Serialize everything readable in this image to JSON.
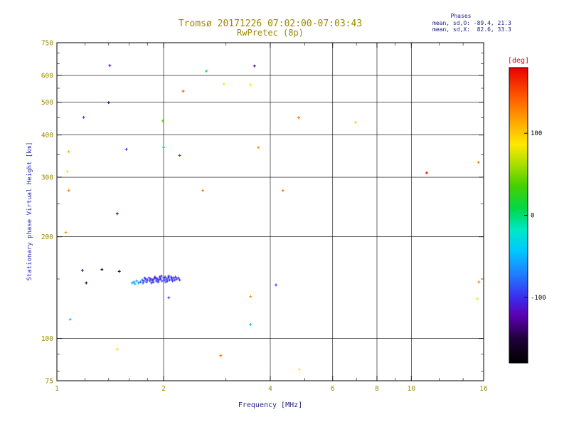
{
  "title": "Tromsø 20171226 07:02:00-07:03:43",
  "subtitle": "RwPretec (8p)",
  "stats": {
    "header": "Phases",
    "line_o": "mean, sd,O: -89.4, 21.3",
    "line_x": "mean, sd,X:  82.6, 33.3"
  },
  "colors": {
    "title": "#9c8a00",
    "ticks": "#9c8a00",
    "xlabel": "#26268c",
    "ylabel": "#2e2eb8",
    "stats": "#1a1a80",
    "colorbar_label": "#e80000",
    "axis": "#000000",
    "background": "#ffffff"
  },
  "chart_data": {
    "type": "scatter",
    "title": "Tromsø 20171226 07:02:00-07:03:43",
    "subtitle": "RwPretec (8p)",
    "xlabel": "Frequency [MHz]",
    "ylabel": "Stationary phase Virtual Height [km]",
    "xscale": "log",
    "yscale": "log",
    "xlim": [
      1,
      16
    ],
    "ylim": [
      75,
      750
    ],
    "xticks": [
      1,
      2,
      4,
      6,
      8,
      10,
      16
    ],
    "yticks": [
      75,
      100,
      200,
      300,
      400,
      500,
      600,
      750
    ],
    "xgrid": [
      2,
      4,
      6,
      8,
      10
    ],
    "ygrid": [
      100,
      200,
      300,
      400,
      500,
      600
    ],
    "x_minor_ticks": [
      1.2,
      1.4,
      1.6,
      1.8,
      3,
      5,
      7,
      9,
      12,
      14
    ],
    "y_minor_ticks": [
      80,
      90,
      150,
      250,
      350,
      450,
      550,
      650,
      700
    ],
    "grid": true,
    "legend": false,
    "colorbar": {
      "label": "[deg]",
      "ticks": [
        100,
        0,
        -100
      ],
      "range": [
        -180,
        180
      ],
      "gradient": [
        {
          "t": 0.0,
          "c": "#000000"
        },
        {
          "t": 0.08,
          "c": "#1e0038"
        },
        {
          "t": 0.16,
          "c": "#5a00b0"
        },
        {
          "t": 0.22,
          "c": "#3b2bee"
        },
        {
          "t": 0.3,
          "c": "#1f7dff"
        },
        {
          "t": 0.38,
          "c": "#00c8ff"
        },
        {
          "t": 0.45,
          "c": "#00e8c8"
        },
        {
          "t": 0.52,
          "c": "#00d84b"
        },
        {
          "t": 0.6,
          "c": "#46cf00"
        },
        {
          "t": 0.68,
          "c": "#b4e000"
        },
        {
          "t": 0.74,
          "c": "#ffe800"
        },
        {
          "t": 0.82,
          "c": "#ffa400"
        },
        {
          "t": 0.9,
          "c": "#ff5a00"
        },
        {
          "t": 1.0,
          "c": "#e80000"
        }
      ]
    },
    "points_format": [
      "frequency_MHz",
      "virtual_height_km",
      "phase_deg"
    ],
    "points": [
      [
        1.08,
        357,
        110
      ],
      [
        1.07,
        312,
        90
      ],
      [
        1.08,
        274,
        128
      ],
      [
        1.06,
        206,
        120
      ],
      [
        1.09,
        114,
        -48
      ],
      [
        1.19,
        451,
        -95
      ],
      [
        1.18,
        159,
        -140
      ],
      [
        1.21,
        146,
        -152
      ],
      [
        1.34,
        160,
        -166
      ],
      [
        1.4,
        499,
        -142
      ],
      [
        1.41,
        642,
        -122
      ],
      [
        1.48,
        234,
        -138
      ],
      [
        1.5,
        158,
        -158
      ],
      [
        1.48,
        93,
        95
      ],
      [
        1.57,
        363,
        -105
      ],
      [
        2.0,
        368,
        8
      ],
      [
        1.99,
        440,
        40
      ],
      [
        2.22,
        348,
        -90
      ],
      [
        2.27,
        539,
        148
      ],
      [
        2.07,
        132,
        -95
      ],
      [
        2.64,
        618,
        12
      ],
      [
        2.96,
        566,
        85
      ],
      [
        2.58,
        274,
        130
      ],
      [
        2.9,
        89,
        135
      ],
      [
        3.52,
        563,
        90
      ],
      [
        3.61,
        640,
        -130
      ],
      [
        3.7,
        367,
        122
      ],
      [
        3.52,
        133,
        126
      ],
      [
        3.52,
        110,
        -50
      ],
      [
        4.15,
        144,
        -95
      ],
      [
        4.34,
        274,
        130
      ],
      [
        4.81,
        450,
        140
      ],
      [
        4.83,
        81,
        86
      ],
      [
        6.96,
        436,
        95
      ],
      [
        11.05,
        309,
        176
      ],
      [
        15.46,
        332,
        130
      ],
      [
        15.52,
        147,
        134
      ],
      [
        15.35,
        131,
        92
      ],
      [
        1.63,
        146,
        -55
      ],
      [
        1.65,
        147,
        -60
      ],
      [
        1.66,
        145,
        -50
      ],
      [
        1.68,
        148,
        -58
      ],
      [
        1.7,
        146,
        -62
      ],
      [
        1.72,
        147,
        -70
      ],
      [
        1.74,
        149,
        -85
      ],
      [
        1.75,
        146,
        -90
      ],
      [
        1.76,
        148,
        -95
      ],
      [
        1.78,
        150,
        -100
      ],
      [
        1.79,
        147,
        -92
      ],
      [
        1.8,
        149,
        -98
      ],
      [
        1.82,
        151,
        -105
      ],
      [
        1.83,
        148,
        -95
      ],
      [
        1.84,
        150,
        -100
      ],
      [
        1.86,
        149,
        -110
      ],
      [
        1.87,
        147,
        -96
      ],
      [
        1.88,
        150,
        -102
      ],
      [
        1.9,
        151,
        -98
      ],
      [
        1.91,
        148,
        -94
      ],
      [
        1.92,
        150,
        -105
      ],
      [
        1.94,
        149,
        -100
      ],
      [
        1.95,
        152,
        -96
      ],
      [
        1.96,
        150,
        -108
      ],
      [
        1.98,
        148,
        -92
      ],
      [
        2.0,
        151,
        -100
      ],
      [
        2.01,
        149,
        -95
      ],
      [
        2.02,
        152,
        -104
      ],
      [
        2.04,
        150,
        -98
      ],
      [
        2.05,
        148,
        -93
      ],
      [
        2.06,
        151,
        -101
      ],
      [
        2.08,
        149,
        -97
      ],
      [
        2.1,
        152,
        -103
      ],
      [
        2.11,
        150,
        -99
      ],
      [
        2.13,
        151,
        -95
      ],
      [
        2.15,
        149,
        -102
      ],
      [
        2.16,
        152,
        -98
      ],
      [
        2.18,
        150,
        -94
      ],
      [
        2.2,
        151,
        -100
      ],
      [
        2.22,
        149,
        -96
      ],
      [
        1.85,
        146,
        -88
      ],
      [
        1.93,
        147,
        -90
      ],
      [
        2.03,
        147,
        -91
      ],
      [
        2.12,
        148,
        -97
      ],
      [
        1.77,
        151,
        -99
      ],
      [
        1.97,
        153,
        -101
      ],
      [
        2.07,
        153,
        -99
      ],
      [
        1.89,
        152,
        -107
      ]
    ]
  }
}
